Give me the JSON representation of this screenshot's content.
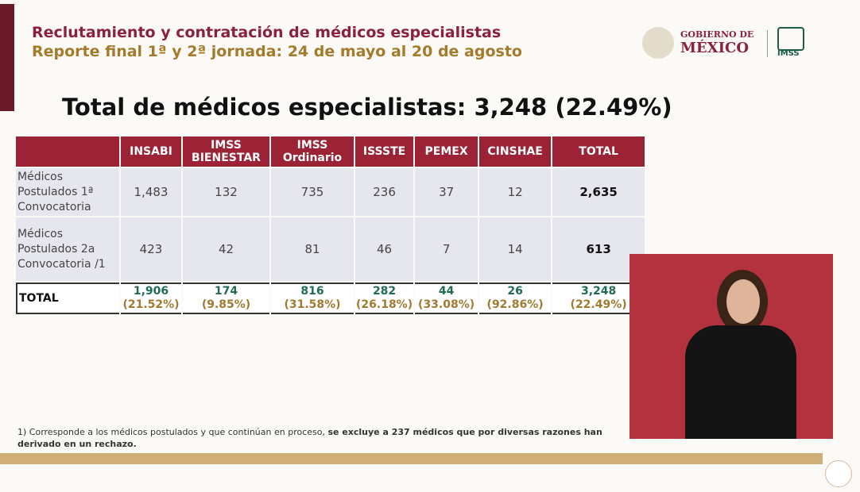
{
  "header": {
    "line1": "Reclutamiento y contratación de médicos especialistas",
    "line2": "Reporte final 1ª y 2ª jornada: 24 de mayo al 20 de agosto"
  },
  "logo": {
    "gobierno": "GOBIERNO DE",
    "mexico": "MÉXICO",
    "imss": "IMSS"
  },
  "main_title": "Total de médicos especialistas: 3,248 (22.49%)",
  "table": {
    "columns": [
      "INSABI",
      "IMSS BIENESTAR",
      "IMSS Ordinario",
      "ISSSTE",
      "PEMEX",
      "CINSHAE",
      "TOTAL"
    ],
    "rows": [
      {
        "label": "Médicos Postulados 1ª Convocatoria",
        "values": [
          "1,483",
          "132",
          "735",
          "236",
          "37",
          "12",
          "2,635"
        ]
      },
      {
        "label": "Médicos Postulados 2a Convocatoria /1",
        "values": [
          "423",
          "42",
          "81",
          "46",
          "7",
          "14",
          "613"
        ]
      }
    ],
    "total": {
      "label": "TOTAL",
      "values": [
        {
          "value": "1,906",
          "share": "(21.52%)"
        },
        {
          "value": "174",
          "share": "(9.85%)"
        },
        {
          "value": "816",
          "share": "(31.58%)"
        },
        {
          "value": "282",
          "share": "(26.18%)"
        },
        {
          "value": "44",
          "share": "(33.08%)"
        },
        {
          "value": "26",
          "share": "(92.86%)"
        },
        {
          "value": "3,248",
          "share": "(22.49%)"
        }
      ]
    }
  },
  "footnote": {
    "text": "1) Corresponde a los médicos postulados y que continúan en proceso, ",
    "bold": "se excluye a 237 médicos que por diversas razones han derivado en un rechazo."
  }
}
